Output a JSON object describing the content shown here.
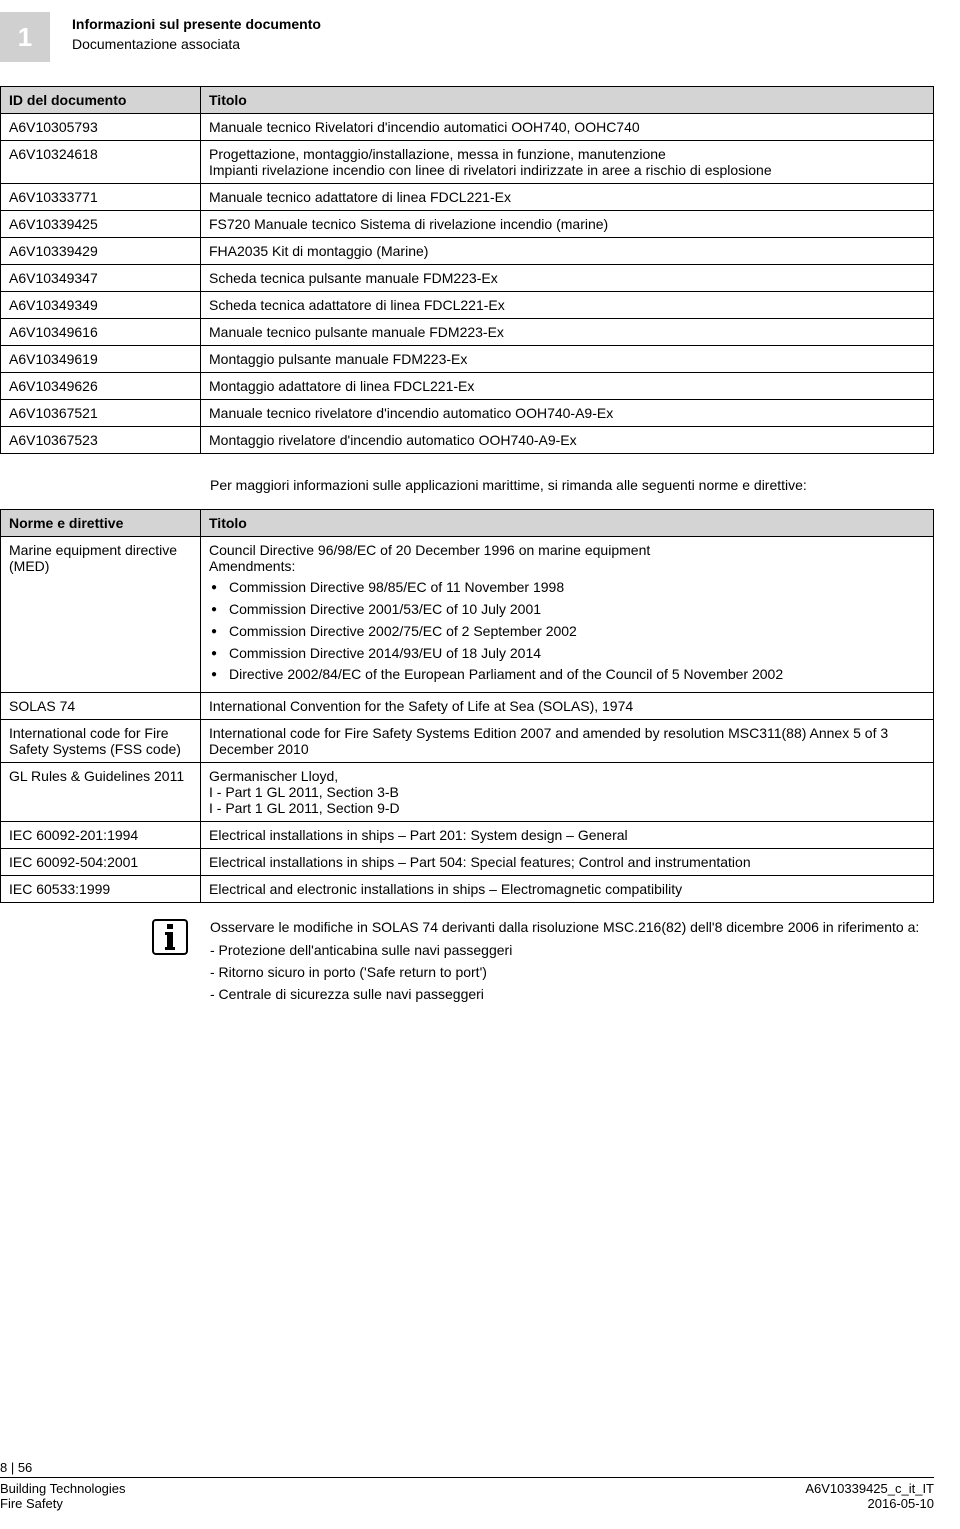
{
  "header": {
    "section_number": "1",
    "title": "Informazioni sul presente documento",
    "subtitle": "Documentazione associata"
  },
  "table1": {
    "col1": "ID del documento",
    "col2": "Titolo",
    "rows": [
      {
        "id": "A6V10305793",
        "title": "Manuale tecnico Rivelatori d'incendio automatici OOH740, OOHC740"
      },
      {
        "id": "A6V10324618",
        "title": "Progettazione, montaggio/installazione, messa in funzione, manutenzione\nImpianti rivelazione incendio con linee di rivelatori indirizzate in aree a rischio di esplosione"
      },
      {
        "id": "A6V10333771",
        "title": "Manuale tecnico adattatore di linea FDCL221-Ex"
      },
      {
        "id": "A6V10339425",
        "title": "FS720 Manuale tecnico Sistema di rivelazione incendio (marine)"
      },
      {
        "id": "A6V10339429",
        "title": "FHA2035 Kit di montaggio (Marine)"
      },
      {
        "id": "A6V10349347",
        "title": "Scheda tecnica pulsante manuale FDM223-Ex"
      },
      {
        "id": "A6V10349349",
        "title": "Scheda tecnica adattatore di linea FDCL221-Ex"
      },
      {
        "id": "A6V10349616",
        "title": "Manuale tecnico pulsante manuale FDM223-Ex"
      },
      {
        "id": "A6V10349619",
        "title": "Montaggio pulsante manuale FDM223-Ex"
      },
      {
        "id": "A6V10349626",
        "title": "Montaggio adattatore di linea FDCL221-Ex"
      },
      {
        "id": "A6V10367521",
        "title": "Manuale tecnico rivelatore d'incendio automatico OOH740-A9-Ex"
      },
      {
        "id": "A6V10367523",
        "title": "Montaggio rivelatore d'incendio automatico OOH740-A9-Ex"
      }
    ]
  },
  "note_between": "Per maggiori informazioni sulle applicazioni marittime, si rimanda alle seguenti norme e direttive:",
  "table2": {
    "col1": "Norme e direttive",
    "col2": "Titolo",
    "rows": [
      {
        "id": "Marine equipment directive (MED)",
        "title_intro": "Council Directive 96/98/EC of 20 December 1996 on marine equipment",
        "title_sub": "Amendments:",
        "bullets": [
          "Commission Directive 98/85/EC of 11 November 1998",
          "Commission Directive 2001/53/EC of 10 July 2001",
          "Commission Directive 2002/75/EC of 2 September 2002",
          "Commission Directive 2014/93/EU of 18 July 2014",
          "Directive 2002/84/EC of the European Parliament and of the Council of 5 November 2002"
        ]
      },
      {
        "id": "SOLAS 74",
        "title": "International Convention for the Safety of Life at Sea (SOLAS), 1974"
      },
      {
        "id": "International code for Fire Safety Systems (FSS code)",
        "title": "International code for Fire Safety Systems Edition 2007 and amended by resolution MSC311(88) Annex 5 of 3 December 2010"
      },
      {
        "id": "GL Rules & Guidelines 2011",
        "title": "Germanischer Lloyd,\nI - Part 1 GL 2011, Section 3-B\nI - Part 1 GL 2011, Section 9-D"
      },
      {
        "id": "IEC 60092-201:1994",
        "title": "Electrical installations in ships – Part 201: System design – General"
      },
      {
        "id": "IEC 60092-504:2001",
        "title": "Electrical installations in ships – Part 504: Special features; Control and instrumentation"
      },
      {
        "id": "IEC 60533:1999",
        "title": "Electrical and electronic installations in ships – Electromagnetic compatibility"
      }
    ]
  },
  "info_box": {
    "lines": [
      "Osservare le modifiche in SOLAS 74 derivanti dalla risoluzione MSC.216(82) dell'8 dicembre 2006 in riferimento a:",
      "- Protezione dell'anticabina sulle navi passeggeri",
      "- Ritorno sicuro in porto ('Safe return to port')",
      "- Centrale di sicurezza sulle navi passeggeri"
    ]
  },
  "footer": {
    "page": "8 | 56",
    "left1": "Building Technologies",
    "left2": "Fire Safety",
    "right1": "A6V10339425_c_it_IT",
    "right2": "2016-05-10"
  }
}
